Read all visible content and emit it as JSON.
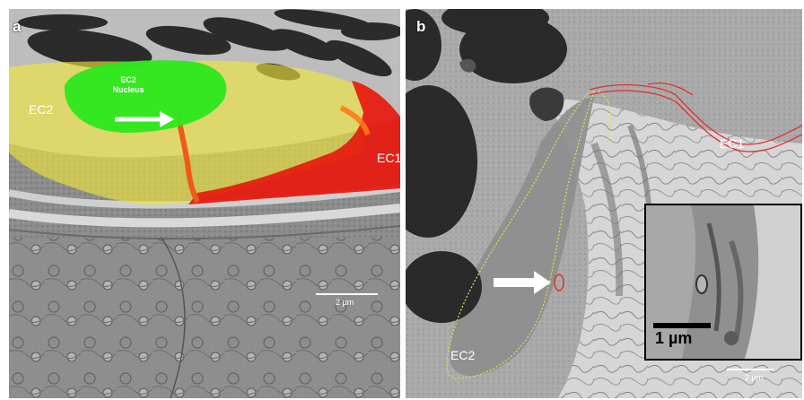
{
  "panel_a": {
    "letter": "a",
    "labels": {
      "ec2": "EC2",
      "ec1": "EC1",
      "nucleus": "EC2\nNucleus"
    },
    "scale_bar_label": "2 µm"
  },
  "panel_b": {
    "letter": "b",
    "labels": {
      "ec1": "EC1",
      "ec2": "EC2"
    },
    "scale_bar_label": "2 µm",
    "inset_scale_label": "1 µm"
  },
  "colors": {
    "ec2_overlay": "#f0e63a",
    "ec1_overlay": "#e8190e",
    "nucleus_overlay": "#2be81e",
    "ec1_outline": "#e03030",
    "ec2_outline": "#e6e04a"
  },
  "icons": [
    "arrow-right-icon"
  ]
}
